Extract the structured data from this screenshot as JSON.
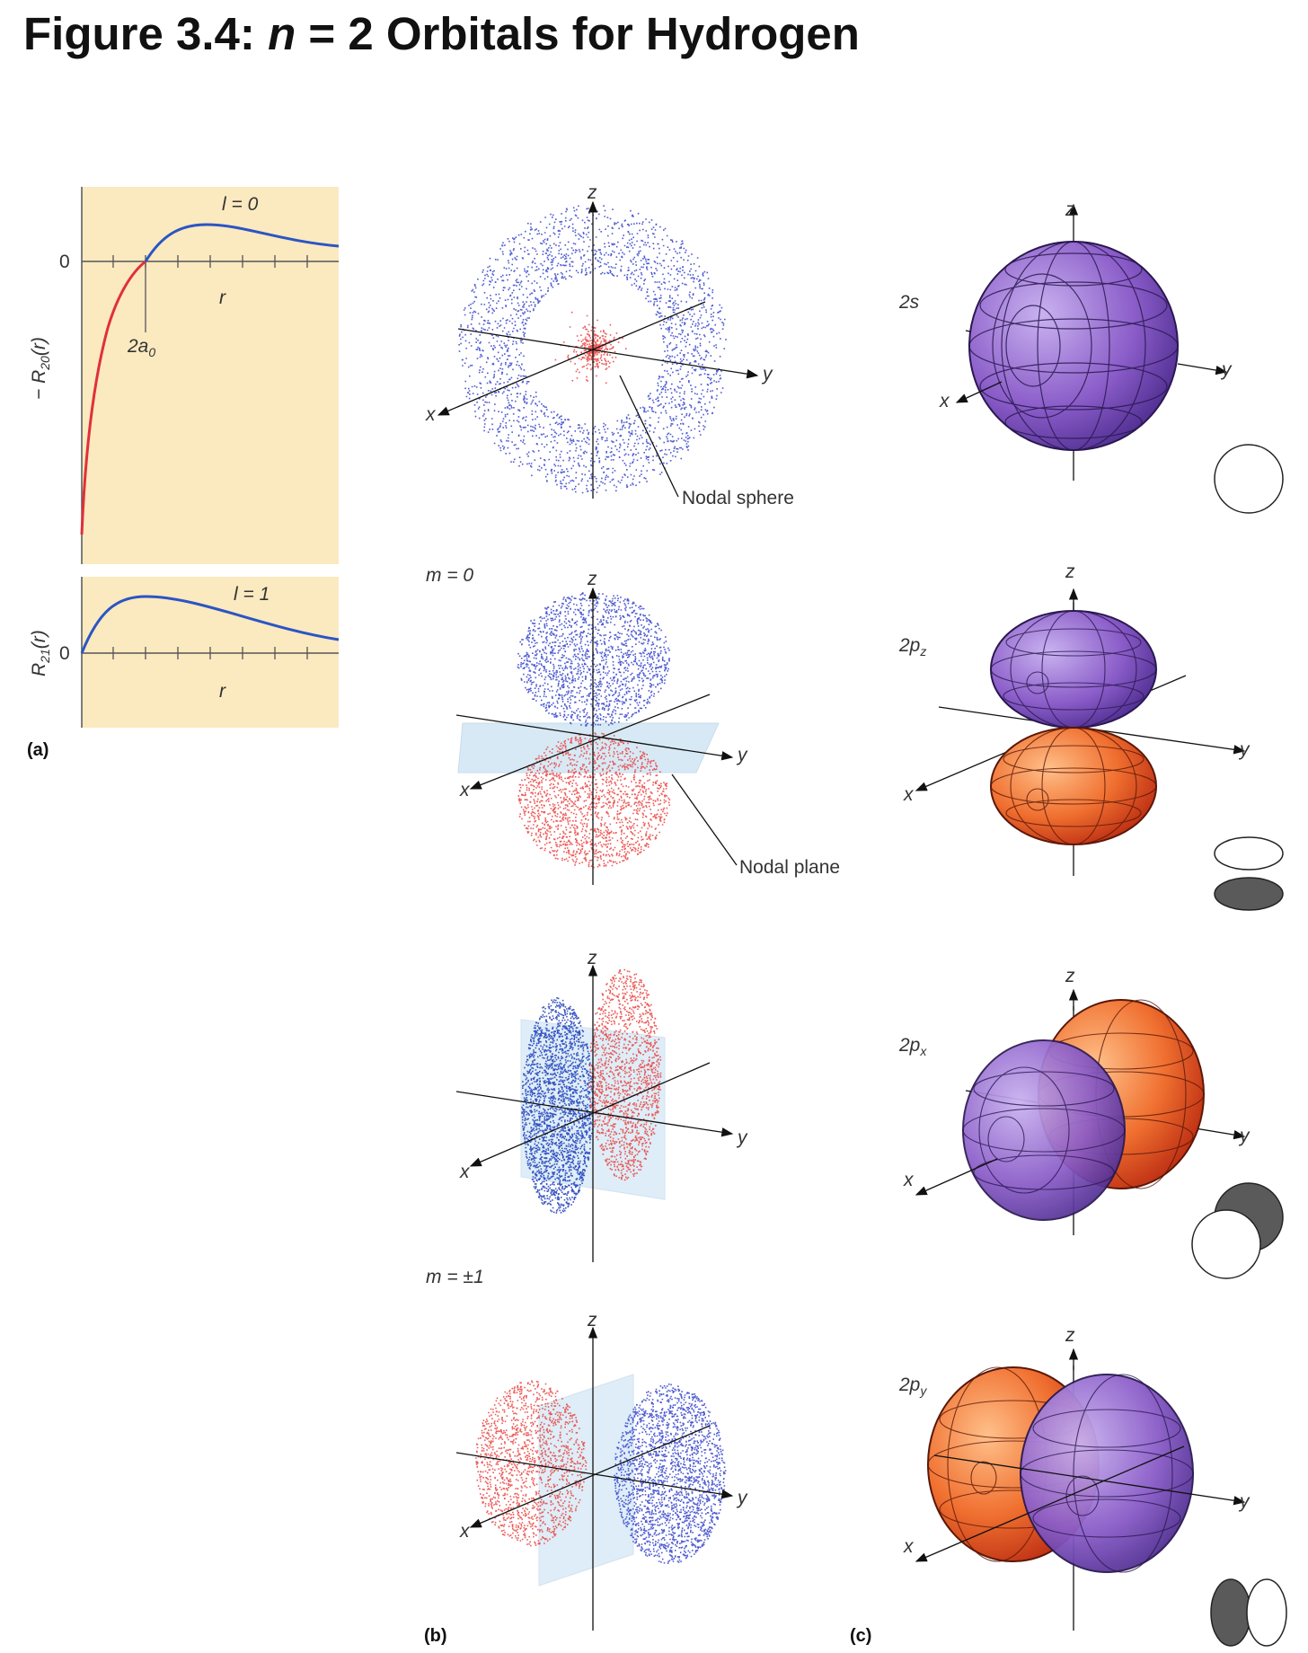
{
  "figure": {
    "title_prefix": "Figure 3.4: ",
    "title_n": "n",
    "title_rest": " = 2 Orbitals for Hydrogen"
  },
  "panel_a": {
    "label": "(a)",
    "top_plot": {
      "curve_label": "l = 0",
      "ylabel": "− R20(r)",
      "ylabel_main": "− R",
      "ylabel_sub": "20",
      "ylabel_tail": "(r)",
      "xlabel": "r",
      "zero_label": "0",
      "node_label": "2a0",
      "node_main": "2a",
      "node_sub": "0"
    },
    "bottom_plot": {
      "curve_label": "l = 1",
      "ylabel_main": "R",
      "ylabel_sub": "21",
      "ylabel_tail": "(r)",
      "xlabel": "r",
      "zero_label": "0"
    },
    "colors": {
      "background": "#fbe9c0",
      "positive": "#2b55c4",
      "negative": "#e0303a"
    }
  },
  "panel_b": {
    "label": "(b)",
    "axis_z": "z",
    "axis_x": "x",
    "axis_y": "y",
    "nodal_sphere": "Nodal sphere",
    "nodal_plane": "Nodal plane",
    "m0": "m = 0",
    "m1": "m = ±1",
    "colors": {
      "positive_dots": "#3040c8",
      "negative_dots": "#e8403c",
      "plane": "#b8d8ee"
    }
  },
  "panel_c": {
    "label": "(c)",
    "orbital_2s": "2s",
    "orbital_2pz_main": "2p",
    "orbital_2pz_sub": "z",
    "orbital_2px_main": "2p",
    "orbital_2px_sub": "x",
    "orbital_2py_main": "2p",
    "orbital_2py_sub": "y",
    "axis_z": "z",
    "axis_x": "x",
    "axis_y": "y",
    "colors": {
      "purple": "#8a5cc8",
      "orange": "#f07030"
    }
  }
}
